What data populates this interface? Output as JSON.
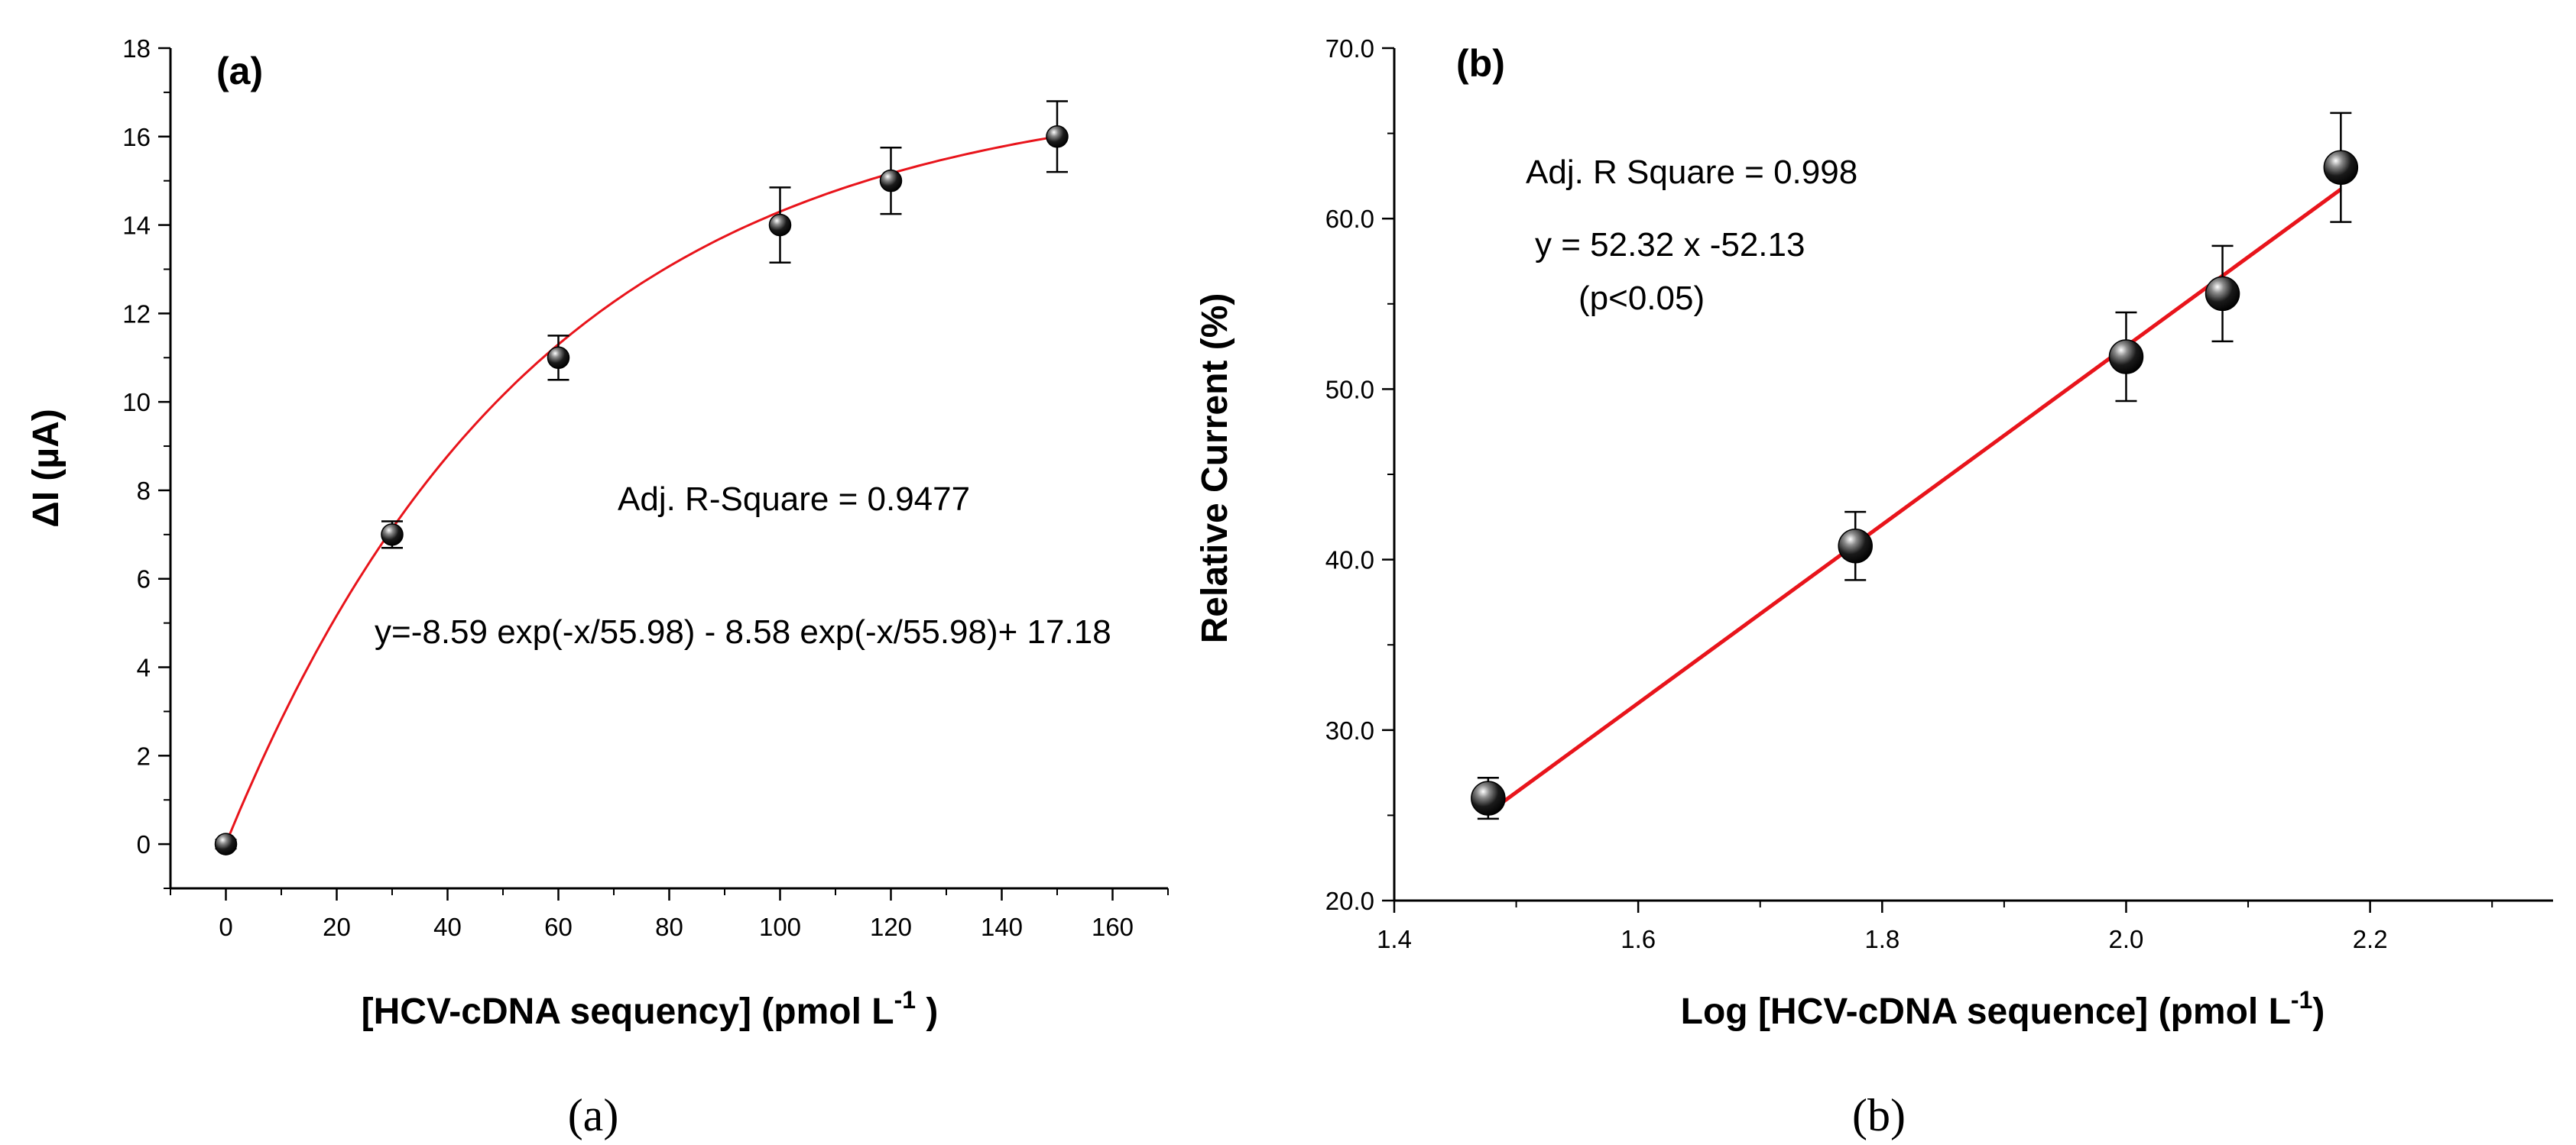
{
  "chart_data": [
    {
      "type": "scatter",
      "panel_label": "(a)",
      "caption": "(a)",
      "xlabel": "[HCV-cDNA sequency] (pmol L",
      "xlabel_sup": "-1",
      "xlabel_tail": " )",
      "ylabel": "ΔI (µA)",
      "xlim": [
        -10,
        170
      ],
      "ylim": [
        -1,
        18
      ],
      "xticks": [
        0,
        20,
        40,
        60,
        80,
        100,
        120,
        140,
        160
      ],
      "yticks": [
        0,
        2,
        4,
        6,
        8,
        10,
        12,
        14,
        16,
        18
      ],
      "points": [
        {
          "x": 0,
          "y": 0,
          "err": 0.1
        },
        {
          "x": 30,
          "y": 7.0,
          "err": 0.3
        },
        {
          "x": 60,
          "y": 11.0,
          "err": 0.5
        },
        {
          "x": 100,
          "y": 14.0,
          "err": 0.85
        },
        {
          "x": 120,
          "y": 15.0,
          "err": 0.75
        },
        {
          "x": 150,
          "y": 16.0,
          "err": 0.8
        }
      ],
      "fit": {
        "kind": "exp",
        "a1": -8.59,
        "t1": 55.98,
        "a2": -8.58,
        "t2": 55.98,
        "c": 17.18,
        "x_range": [
          0,
          150
        ],
        "color": "#e8141b"
      },
      "annotations": [
        "Adj. R-Square = 0.9477",
        "y=-8.59 exp(-x/55.98) - 8.58 exp(-x/55.98)+ 17.18"
      ]
    },
    {
      "type": "scatter",
      "panel_label": "(b)",
      "caption": "(b)",
      "xlabel": "Log [HCV-cDNA sequence] (pmol L",
      "xlabel_sup": "-1",
      "xlabel_tail": ")",
      "ylabel": "Relative Current (%)",
      "xlim": [
        1.4,
        2.35
      ],
      "ylim": [
        20.0,
        70.0
      ],
      "xticks": [
        1.4,
        1.6,
        1.8,
        2.0,
        2.2
      ],
      "xtick_labels": [
        "1.4",
        "1.6",
        "1.8",
        "2.0",
        "2.2"
      ],
      "yticks": [
        20,
        30,
        40,
        50,
        60,
        70
      ],
      "ytick_labels": [
        "20.0",
        "30.0",
        "40.0",
        "50.0",
        "60.0",
        "70.0"
      ],
      "points": [
        {
          "x": 1.477,
          "y": 26.0,
          "err": 1.2
        },
        {
          "x": 1.778,
          "y": 40.8,
          "err": 2.0
        },
        {
          "x": 2.0,
          "y": 51.9,
          "err": 2.6
        },
        {
          "x": 2.079,
          "y": 55.6,
          "err": 2.8
        },
        {
          "x": 2.176,
          "y": 63.0,
          "err": 3.2
        }
      ],
      "fit": {
        "kind": "linear",
        "slope": 52.32,
        "intercept": -52.13,
        "x_range": [
          1.477,
          2.176
        ],
        "color": "#e8141b"
      },
      "annotations": [
        "Adj. R Square = 0.998",
        "y = 52.32 x -52.13",
        "(p<0.05)"
      ]
    }
  ]
}
